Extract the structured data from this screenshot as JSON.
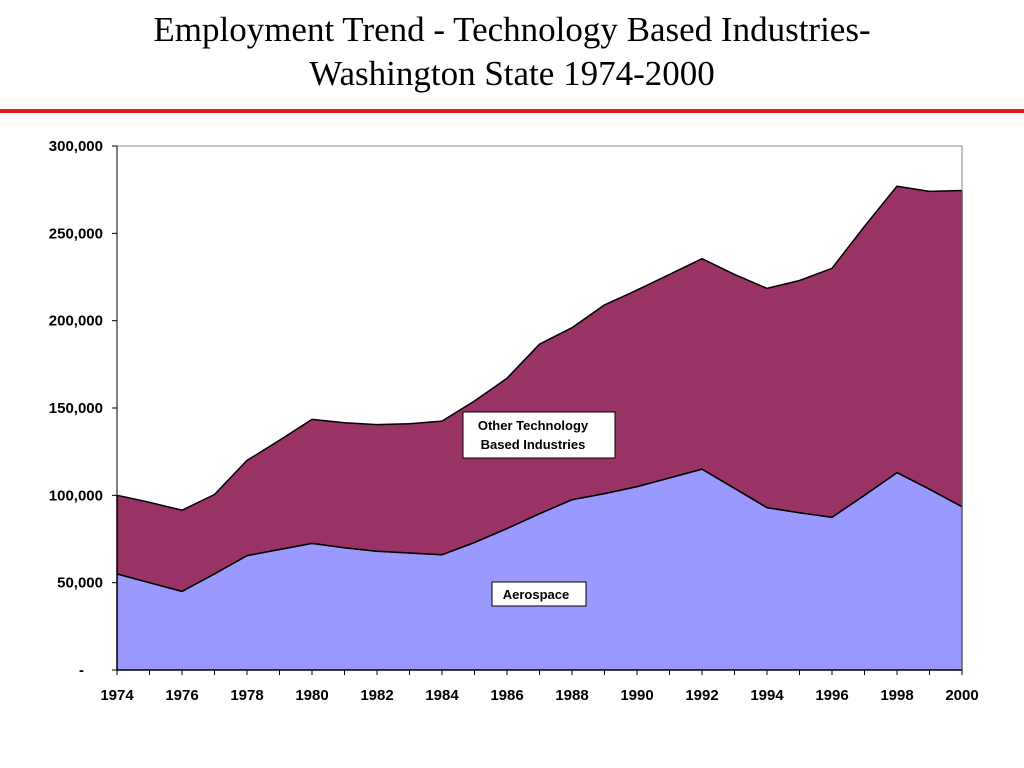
{
  "title_line1": "Employment Trend - Technology Based Industries-",
  "title_line2": "Washington State 1974-2000",
  "colors": {
    "rule": "#e21b1b",
    "aerospace": "#9999ff",
    "other": "#993366"
  },
  "chart_data": {
    "type": "area",
    "stacked": true,
    "x": [
      1974,
      1975,
      1976,
      1977,
      1978,
      1979,
      1980,
      1981,
      1982,
      1983,
      1984,
      1985,
      1986,
      1987,
      1988,
      1989,
      1990,
      1991,
      1992,
      1993,
      1994,
      1995,
      1996,
      1997,
      1998,
      1999,
      2000
    ],
    "x_tick_labels": [
      "1974",
      "1976",
      "1978",
      "1980",
      "1982",
      "1984",
      "1986",
      "1988",
      "1990",
      "1992",
      "1994",
      "1996",
      "1998",
      "2000"
    ],
    "y_tick_labels": [
      "-",
      "50,000",
      "100,000",
      "150,000",
      "200,000",
      "250,000",
      "300,000"
    ],
    "ylim": [
      0,
      300000
    ],
    "series": [
      {
        "name": "Aerospace",
        "values": [
          55000,
          50000,
          45000,
          55000,
          65500,
          69000,
          72500,
          70000,
          68000,
          67000,
          66000,
          73000,
          81000,
          89500,
          97500,
          101000,
          105000,
          110000,
          115000,
          104000,
          93000,
          90000,
          87500,
          100000,
          113000,
          103500,
          93500
        ]
      },
      {
        "name": "Other Technology Based Industries",
        "values": [
          45000,
          46000,
          46500,
          45500,
          54500,
          62500,
          71000,
          71500,
          72500,
          74000,
          76500,
          81000,
          86000,
          97000,
          98500,
          108000,
          112500,
          116500,
          120500,
          122500,
          125500,
          133000,
          142500,
          154000,
          164000,
          170500,
          181000
        ]
      }
    ],
    "series_labels": [
      "Aerospace",
      "Other Technology",
      "Based Industries"
    ],
    "grid": false
  }
}
